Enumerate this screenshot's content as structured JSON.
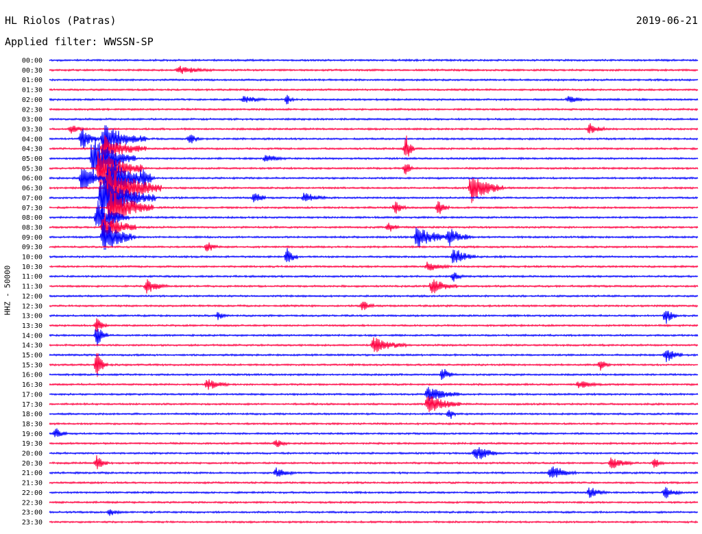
{
  "header": {
    "station": "HL Riolos (Patras)",
    "date": "2019-06-21",
    "filter": "Applied filter: WWSSN-SP"
  },
  "chart_data": {
    "type": "line",
    "ylabel": "HHZ - 50000",
    "rows": [
      "00:00",
      "00:30",
      "01:00",
      "01:30",
      "02:00",
      "02:30",
      "03:00",
      "03:30",
      "04:00",
      "04:30",
      "05:00",
      "05:30",
      "06:00",
      "06:30",
      "07:00",
      "07:30",
      "08:00",
      "08:30",
      "09:00",
      "09:30",
      "10:00",
      "10:30",
      "11:00",
      "11:30",
      "12:00",
      "12:30",
      "13:00",
      "13:30",
      "14:00",
      "14:30",
      "15:00",
      "15:30",
      "16:00",
      "16:30",
      "17:00",
      "17:30",
      "18:00",
      "18:30",
      "19:00",
      "19:30",
      "20:00",
      "20:30",
      "21:00",
      "21:30",
      "22:00",
      "22:30",
      "23:00",
      "23:30"
    ],
    "colors": {
      "even_rows": "#0000ff",
      "odd_rows": "#ff0040"
    },
    "events": [
      {
        "row": 1,
        "minute": 6,
        "amp": 0.4,
        "dur": 1.5
      },
      {
        "row": 4,
        "minute": 9,
        "amp": 0.4,
        "dur": 1
      },
      {
        "row": 4,
        "minute": 11,
        "amp": 0.5,
        "dur": 0.3
      },
      {
        "row": 4,
        "minute": 24,
        "amp": 0.3,
        "dur": 1
      },
      {
        "row": 7,
        "minute": 1,
        "amp": 0.4,
        "dur": 0.8
      },
      {
        "row": 7,
        "minute": 25,
        "amp": 0.6,
        "dur": 0.7
      },
      {
        "row": 8,
        "minute": 1.5,
        "amp": 1.2,
        "dur": 0.8
      },
      {
        "row": 8,
        "minute": 2.5,
        "amp": 1.6,
        "dur": 2
      },
      {
        "row": 8,
        "minute": 6.5,
        "amp": 0.6,
        "dur": 0.5
      },
      {
        "row": 9,
        "minute": 2.5,
        "amp": 1.4,
        "dur": 2
      },
      {
        "row": 9,
        "minute": 16.5,
        "amp": 1.5,
        "dur": 0.4
      },
      {
        "row": 10,
        "minute": 2,
        "amp": 2.4,
        "dur": 2
      },
      {
        "row": 10,
        "minute": 10,
        "amp": 0.4,
        "dur": 1
      },
      {
        "row": 11,
        "minute": 2.3,
        "amp": 2.5,
        "dur": 2
      },
      {
        "row": 11,
        "minute": 16.5,
        "amp": 1,
        "dur": 0.3
      },
      {
        "row": 12,
        "minute": 1.5,
        "amp": 1.5,
        "dur": 1
      },
      {
        "row": 12,
        "minute": 2.7,
        "amp": 2.4,
        "dur": 2
      },
      {
        "row": 12,
        "minute": 4.3,
        "amp": 0.8,
        "dur": 0.6
      },
      {
        "row": 13,
        "minute": 2.7,
        "amp": 2.5,
        "dur": 2.5
      },
      {
        "row": 13,
        "minute": 19.5,
        "amp": 1.6,
        "dur": 1.5
      },
      {
        "row": 14,
        "minute": 2.4,
        "amp": 2.5,
        "dur": 2.5
      },
      {
        "row": 14,
        "minute": 9.5,
        "amp": 0.7,
        "dur": 0.5
      },
      {
        "row": 14,
        "minute": 11.8,
        "amp": 0.6,
        "dur": 1
      },
      {
        "row": 15,
        "minute": 2.8,
        "amp": 2,
        "dur": 2
      },
      {
        "row": 15,
        "minute": 16,
        "amp": 0.8,
        "dur": 0.5
      },
      {
        "row": 15,
        "minute": 18,
        "amp": 0.8,
        "dur": 0.5
      },
      {
        "row": 16,
        "minute": 2.2,
        "amp": 1.8,
        "dur": 1.5
      },
      {
        "row": 17,
        "minute": 2.5,
        "amp": 1.6,
        "dur": 1.5
      },
      {
        "row": 17,
        "minute": 15.7,
        "amp": 0.6,
        "dur": 0.5
      },
      {
        "row": 18,
        "minute": 2.5,
        "amp": 1.8,
        "dur": 1.5
      },
      {
        "row": 18,
        "minute": 17,
        "amp": 1.2,
        "dur": 1.5
      },
      {
        "row": 18,
        "minute": 18.5,
        "amp": 1,
        "dur": 1
      },
      {
        "row": 19,
        "minute": 7.3,
        "amp": 0.6,
        "dur": 0.5
      },
      {
        "row": 20,
        "minute": 11,
        "amp": 0.9,
        "dur": 0.5
      },
      {
        "row": 20,
        "minute": 18.7,
        "amp": 1,
        "dur": 1
      },
      {
        "row": 21,
        "minute": 17.5,
        "amp": 0.5,
        "dur": 1
      },
      {
        "row": 22,
        "minute": 18.7,
        "amp": 0.5,
        "dur": 0.5
      },
      {
        "row": 23,
        "minute": 4.5,
        "amp": 0.7,
        "dur": 1
      },
      {
        "row": 23,
        "minute": 17.7,
        "amp": 0.8,
        "dur": 1.2
      },
      {
        "row": 25,
        "minute": 14.5,
        "amp": 0.6,
        "dur": 0.5
      },
      {
        "row": 26,
        "minute": 7.8,
        "amp": 0.4,
        "dur": 0.5
      },
      {
        "row": 26,
        "minute": 28.5,
        "amp": 1,
        "dur": 0.5
      },
      {
        "row": 27,
        "minute": 2.2,
        "amp": 0.8,
        "dur": 0.5
      },
      {
        "row": 28,
        "minute": 2.2,
        "amp": 1.2,
        "dur": 0.5
      },
      {
        "row": 29,
        "minute": 15,
        "amp": 0.8,
        "dur": 1.5
      },
      {
        "row": 30,
        "minute": 28.5,
        "amp": 0.8,
        "dur": 0.8
      },
      {
        "row": 31,
        "minute": 2.2,
        "amp": 1.4,
        "dur": 0.5
      },
      {
        "row": 31,
        "minute": 25.5,
        "amp": 0.6,
        "dur": 0.5
      },
      {
        "row": 32,
        "minute": 18.2,
        "amp": 0.8,
        "dur": 0.5
      },
      {
        "row": 33,
        "minute": 7.3,
        "amp": 0.6,
        "dur": 1
      },
      {
        "row": 33,
        "minute": 24.5,
        "amp": 0.4,
        "dur": 1
      },
      {
        "row": 34,
        "minute": 17.5,
        "amp": 0.8,
        "dur": 1.5
      },
      {
        "row": 35,
        "minute": 17.5,
        "amp": 1,
        "dur": 1.5
      },
      {
        "row": 36,
        "minute": 18.5,
        "amp": 0.8,
        "dur": 0.3
      },
      {
        "row": 38,
        "minute": 0.3,
        "amp": 0.6,
        "dur": 0.5
      },
      {
        "row": 39,
        "minute": 10.5,
        "amp": 0.5,
        "dur": 0.5
      },
      {
        "row": 40,
        "minute": 19.7,
        "amp": 1,
        "dur": 1
      },
      {
        "row": 41,
        "minute": 2.2,
        "amp": 0.8,
        "dur": 0.5
      },
      {
        "row": 41,
        "minute": 26,
        "amp": 0.6,
        "dur": 1
      },
      {
        "row": 41,
        "minute": 28,
        "amp": 0.5,
        "dur": 0.5
      },
      {
        "row": 42,
        "minute": 10.5,
        "amp": 0.5,
        "dur": 0.8
      },
      {
        "row": 42,
        "minute": 23.2,
        "amp": 0.8,
        "dur": 1.2
      },
      {
        "row": 44,
        "minute": 25,
        "amp": 0.6,
        "dur": 0.8
      },
      {
        "row": 44,
        "minute": 28.5,
        "amp": 0.6,
        "dur": 0.8
      },
      {
        "row": 46,
        "minute": 2.8,
        "amp": 0.4,
        "dur": 0.5
      }
    ]
  }
}
